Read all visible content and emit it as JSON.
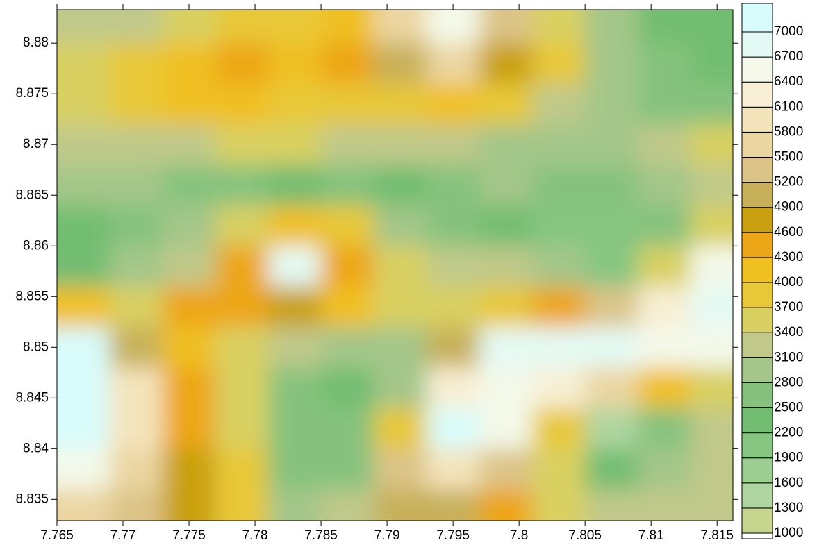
{
  "chart_data": {
    "type": "contour",
    "x": [
      7.767,
      7.771,
      7.775,
      7.779,
      7.783,
      7.787,
      7.791,
      7.795,
      7.799,
      7.803,
      7.807,
      7.811,
      7.815
    ],
    "y": [
      8.882,
      8.878,
      8.874,
      8.87,
      8.866,
      8.862,
      8.858,
      8.854,
      8.85,
      8.846,
      8.842,
      8.838,
      8.834
    ],
    "z": [
      [
        3100,
        3300,
        3600,
        3700,
        3700,
        4000,
        5500,
        6600,
        5200,
        3500,
        2900,
        2400,
        2200
      ],
      [
        3400,
        3700,
        4100,
        4300,
        4200,
        4400,
        5000,
        5600,
        4700,
        3700,
        2900,
        2600,
        2300
      ],
      [
        3600,
        3800,
        4000,
        4000,
        3900,
        3700,
        3900,
        4200,
        3900,
        3300,
        2800,
        2700,
        2600
      ],
      [
        3200,
        3300,
        3300,
        3400,
        3400,
        3200,
        3100,
        3200,
        3000,
        2800,
        2800,
        3100,
        3600
      ],
      [
        2900,
        2800,
        2700,
        2700,
        2300,
        2500,
        2300,
        2600,
        2800,
        2700,
        2700,
        3000,
        3300
      ],
      [
        2200,
        2500,
        2900,
        3400,
        4200,
        3800,
        3000,
        2500,
        2200,
        2000,
        1900,
        2600,
        3400
      ],
      [
        2300,
        2800,
        3300,
        4300,
        6800,
        4300,
        3500,
        3300,
        3100,
        2800,
        2100,
        3600,
        6600
      ],
      [
        4000,
        3500,
        4300,
        4400,
        4600,
        4000,
        3400,
        3600,
        3800,
        4400,
        5200,
        6100,
        6800
      ],
      [
        7300,
        5000,
        4200,
        3600,
        3100,
        2800,
        3000,
        5000,
        6700,
        6800,
        6800,
        6600,
        6500
      ],
      [
        7500,
        6000,
        4400,
        3500,
        2600,
        2400,
        3000,
        6300,
        6500,
        6200,
        5500,
        4200,
        3500
      ],
      [
        7300,
        6000,
        4500,
        3500,
        2600,
        2600,
        3700,
        7000,
        6400,
        3800,
        1500,
        2700,
        3200
      ],
      [
        6600,
        5600,
        4600,
        3700,
        2700,
        2600,
        5200,
        5800,
        5200,
        3600,
        2400,
        2800,
        3100
      ],
      [
        5700,
        5200,
        4700,
        3800,
        3000,
        3100,
        4900,
        5000,
        4400,
        3500,
        3100,
        3100,
        3200
      ]
    ],
    "xlim": [
      7.765,
      7.8162
    ],
    "ylim": [
      8.8329,
      8.8833
    ],
    "xticks": [
      7.765,
      7.77,
      7.775,
      7.78,
      7.785,
      7.79,
      7.795,
      7.8,
      7.805,
      7.81,
      7.815
    ],
    "yticks": [
      8.835,
      8.84,
      8.845,
      8.85,
      8.855,
      8.86,
      8.865,
      8.87,
      8.875,
      8.88
    ],
    "levels": [
      1000,
      1300,
      1600,
      1900,
      2200,
      2500,
      2800,
      3100,
      3400,
      3700,
      4000,
      4300,
      4600,
      4900,
      5200,
      5500,
      5800,
      6100,
      6400,
      6700,
      7000
    ],
    "colors": [
      "#c7d68e",
      "#afd5a0",
      "#9dcf92",
      "#86c682",
      "#72bd72",
      "#86c27e",
      "#a4c68a",
      "#c0c98a",
      "#d9d062",
      "#e8c838",
      "#f0c020",
      "#eda618",
      "#c9a010",
      "#c8b05a",
      "#dcc488",
      "#ebd6a2",
      "#f4e4bc",
      "#f8efd4",
      "#f4f9ea",
      "#e4faf4",
      "#d8fcfc"
    ]
  }
}
